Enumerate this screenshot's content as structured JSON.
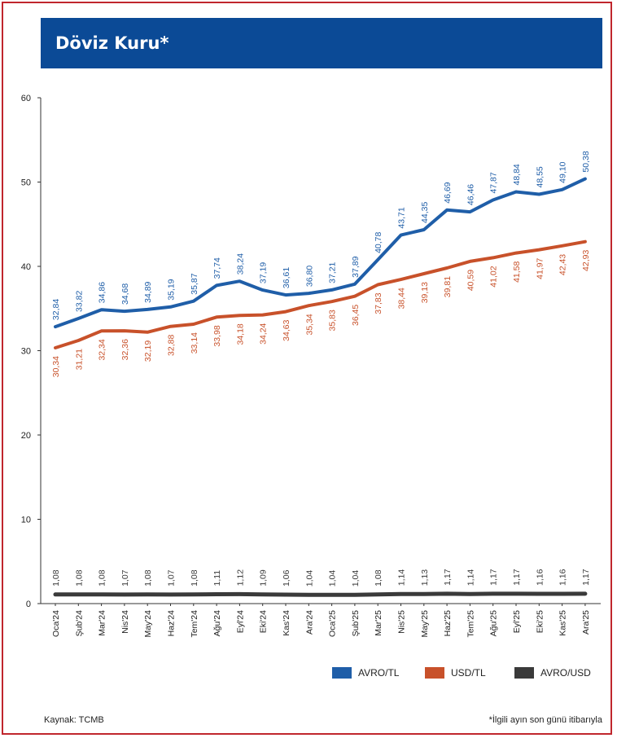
{
  "header": {
    "title": "Döviz Kuru*"
  },
  "footer": {
    "source": "Kaynak: TCMB",
    "note": "*İlgili ayın son günü itibarıyla"
  },
  "colors": {
    "avro_tl": "#1f5ea8",
    "usd_tl": "#c8512a",
    "avro_usd": "#3a3a3a",
    "frame": "#c0262d",
    "title_bg": "#0b4a96"
  },
  "chart_data": {
    "type": "line",
    "title": "Döviz Kuru*",
    "xlabel": "",
    "ylabel": "",
    "ylim": [
      0,
      60
    ],
    "yticks": [
      0,
      10,
      20,
      30,
      40,
      50,
      60
    ],
    "grid": false,
    "legend_position": "bottom-right",
    "categories": [
      "Oca'24",
      "Şub'24",
      "Mar'24",
      "Nis'24",
      "May'24",
      "Haz'24",
      "Tem'24",
      "Ağu'24",
      "Eyl'24",
      "Eki'24",
      "Kas'24",
      "Ara'24",
      "Oca'25",
      "Şub'25",
      "Mar'25",
      "Nis'25",
      "May'25",
      "Haz'25",
      "Tem'25",
      "Ağu'25",
      "Eyl'25",
      "Eki'25",
      "Kas'25",
      "Ara'25"
    ],
    "series": [
      {
        "name": "AVRO/TL",
        "color": "#1f5ea8",
        "values": [
          32.84,
          33.82,
          34.86,
          34.68,
          34.89,
          35.19,
          35.87,
          37.74,
          38.24,
          37.19,
          36.61,
          36.8,
          37.21,
          37.89,
          40.78,
          43.71,
          44.35,
          46.69,
          46.46,
          47.87,
          48.84,
          48.55,
          49.1,
          50.38
        ],
        "labels": [
          "32,84",
          "33,82",
          "34,86",
          "34,68",
          "34,89",
          "35,19",
          "35,87",
          "37,74",
          "38,24",
          "37,19",
          "36,61",
          "36,80",
          "37,21",
          "37,89",
          "40,78",
          "43,71",
          "44,35",
          "46,69",
          "46,46",
          "47,87",
          "48,84",
          "48,55",
          "49,10",
          "50,38"
        ]
      },
      {
        "name": "USD/TL",
        "color": "#c8512a",
        "values": [
          30.34,
          31.21,
          32.34,
          32.36,
          32.19,
          32.88,
          33.14,
          33.98,
          34.18,
          34.24,
          34.63,
          35.34,
          35.83,
          36.45,
          37.83,
          38.44,
          39.13,
          39.81,
          40.59,
          41.02,
          41.58,
          41.97,
          42.43,
          42.93
        ],
        "labels": [
          "30,34",
          "31,21",
          "32,34",
          "32,36",
          "32,19",
          "32,88",
          "33,14",
          "33,98",
          "34,18",
          "34,24",
          "34,63",
          "35,34",
          "35,83",
          "36,45",
          "37,83",
          "38,44",
          "39,13",
          "39,81",
          "40,59",
          "41,02",
          "41,58",
          "41,97",
          "42,43",
          "42,93"
        ]
      },
      {
        "name": "AVRO/USD",
        "color": "#3a3a3a",
        "values": [
          1.08,
          1.08,
          1.08,
          1.07,
          1.08,
          1.07,
          1.08,
          1.11,
          1.12,
          1.09,
          1.06,
          1.04,
          1.04,
          1.04,
          1.08,
          1.14,
          1.13,
          1.17,
          1.14,
          1.17,
          1.17,
          1.16,
          1.16,
          1.17
        ],
        "labels": [
          "1,08",
          "1,08",
          "1,08",
          "1,07",
          "1,08",
          "1,07",
          "1,08",
          "1,11",
          "1,12",
          "1,09",
          "1,06",
          "1,04",
          "1,04",
          "1,04",
          "1,08",
          "1,14",
          "1,13",
          "1,17",
          "1,14",
          "1,17",
          "1,17",
          "1,16",
          "1,16",
          "1,17"
        ]
      }
    ]
  }
}
